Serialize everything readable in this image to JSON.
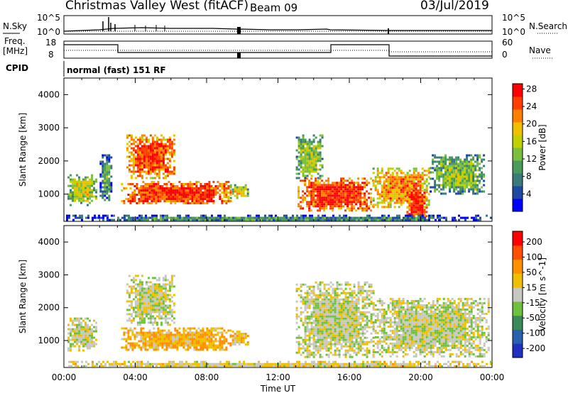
{
  "header": {
    "title": "Christmas Valley West (fitACF)",
    "beam": "Beam 09",
    "date": "03/Jul/2019"
  },
  "top_panels": {
    "nsky_label": "N.Sky",
    "nsky_ticks": [
      "10^5",
      "10^0"
    ],
    "nsearch_label": "N.Search",
    "nsearch_ticks": [
      "10^5",
      "10^0"
    ],
    "freq_label_1": "Freq.",
    "freq_label_2": "[MHz]",
    "freq_ticks": [
      "18",
      "8"
    ],
    "nave_label": "Nave",
    "nave_ticks": [
      "60",
      "0"
    ],
    "cpid_label": "CPID",
    "cpid_text": "normal (fast) 151 RF"
  },
  "chart_data": [
    {
      "type": "heatmap",
      "panel": "power",
      "ylabel": "Slant Range [km]",
      "yticks": [
        "1000",
        "2000",
        "3000",
        "4000"
      ],
      "ylim": [
        180,
        4500
      ],
      "xlim": [
        0,
        24
      ],
      "colorbar_label": "Power [dB]",
      "colorbar_ticks": [
        "4",
        "8",
        "12",
        "16",
        "20",
        "24",
        "28"
      ],
      "colors": [
        "#0000ff",
        "#1e4aa0",
        "#3a7a7a",
        "#4a9a5a",
        "#7ac040",
        "#c0d000",
        "#f0c000",
        "#ff8000",
        "#ff4000",
        "#ff0000"
      ],
      "regions": [
        {
          "t0": 0.2,
          "t1": 1.8,
          "r0": 700,
          "r1": 1600,
          "level": 0.55
        },
        {
          "t0": 2.0,
          "t1": 2.6,
          "r0": 800,
          "r1": 2200,
          "level": 0.35
        },
        {
          "t0": 3.2,
          "t1": 9.3,
          "r0": 700,
          "r1": 1400,
          "level": 0.9
        },
        {
          "t0": 9.3,
          "t1": 10.3,
          "r0": 900,
          "r1": 1300,
          "level": 0.6
        },
        {
          "t0": 3.5,
          "t1": 6.2,
          "r0": 1500,
          "r1": 2800,
          "level": 0.85
        },
        {
          "t0": 13.1,
          "t1": 17.3,
          "r0": 500,
          "r1": 1500,
          "level": 0.9
        },
        {
          "t0": 17.3,
          "t1": 20.5,
          "r0": 600,
          "r1": 1800,
          "level": 0.75
        },
        {
          "t0": 19.2,
          "t1": 20.3,
          "r0": 250,
          "r1": 1200,
          "level": 0.95
        },
        {
          "t0": 20.5,
          "t1": 23.6,
          "r0": 1000,
          "r1": 2200,
          "level": 0.45
        },
        {
          "t0": 13.0,
          "t1": 14.5,
          "r0": 1500,
          "r1": 2800,
          "level": 0.5
        },
        {
          "t0": 0.0,
          "t1": 24.0,
          "r0": 200,
          "r1": 380,
          "level": 0.3
        }
      ]
    },
    {
      "type": "heatmap",
      "panel": "velocity",
      "ylabel": "Slant Range [km]",
      "yticks": [
        "1000",
        "2000",
        "3000",
        "4000"
      ],
      "ylim": [
        180,
        4500
      ],
      "xlim": [
        0,
        24
      ],
      "xticks": [
        "00:00",
        "04:00",
        "08:00",
        "12:00",
        "16:00",
        "20:00",
        "00:00"
      ],
      "xlabel": "Time UT",
      "colorbar_label": "Velocity [m s^-1]",
      "colorbar_ticks": [
        "200",
        "100",
        "50",
        "15",
        "-15",
        "-50",
        "-100",
        "-200"
      ],
      "colors": [
        "#2030c0",
        "#2a60b0",
        "#3a8a5a",
        "#70c040",
        "#c8c8c0",
        "#f0c000",
        "#ff9000",
        "#ff5000",
        "#ff0000"
      ],
      "regions": [
        {
          "t0": 0.2,
          "t1": 1.8,
          "r0": 700,
          "r1": 1700,
          "level": 0.5
        },
        {
          "t0": 3.5,
          "t1": 6.2,
          "r0": 1500,
          "r1": 3000,
          "level": 0.5
        },
        {
          "t0": 3.2,
          "t1": 9.3,
          "r0": 700,
          "r1": 1400,
          "level": 0.65
        },
        {
          "t0": 9.3,
          "t1": 10.3,
          "r0": 900,
          "r1": 1300,
          "level": 0.62
        },
        {
          "t0": 13.0,
          "t1": 17.3,
          "r0": 500,
          "r1": 2800,
          "level": 0.5
        },
        {
          "t0": 17.3,
          "t1": 23.8,
          "r0": 500,
          "r1": 2300,
          "level": 0.5
        },
        {
          "t0": 0.0,
          "t1": 24.0,
          "r0": 200,
          "r1": 380,
          "level": 0.55
        }
      ]
    }
  ]
}
